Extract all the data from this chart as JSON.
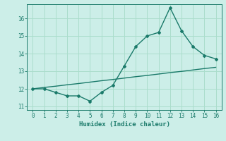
{
  "xlabel": "Humidex (Indice chaleur)",
  "bg_color": "#cceee8",
  "line_color": "#1a7a6a",
  "grid_color": "#aaddcc",
  "x_data": [
    0,
    1,
    2,
    3,
    4,
    5,
    6,
    7,
    8,
    9,
    10,
    11,
    12,
    13,
    14,
    15,
    16
  ],
  "y_main": [
    12.0,
    12.0,
    11.8,
    11.6,
    11.6,
    11.3,
    11.8,
    12.2,
    13.3,
    14.4,
    15.0,
    15.2,
    16.6,
    15.3,
    14.4,
    13.9,
    13.7
  ],
  "y_trend": [
    12.0,
    12.08,
    12.15,
    12.23,
    12.3,
    12.38,
    12.46,
    12.53,
    12.61,
    12.69,
    12.76,
    12.84,
    12.92,
    12.99,
    13.07,
    13.15,
    13.22
  ],
  "xlim": [
    -0.5,
    16.5
  ],
  "ylim": [
    10.8,
    16.8
  ],
  "yticks": [
    11,
    12,
    13,
    14,
    15,
    16
  ],
  "xticks": [
    0,
    1,
    2,
    3,
    4,
    5,
    6,
    7,
    8,
    9,
    10,
    11,
    12,
    13,
    14,
    15,
    16
  ]
}
